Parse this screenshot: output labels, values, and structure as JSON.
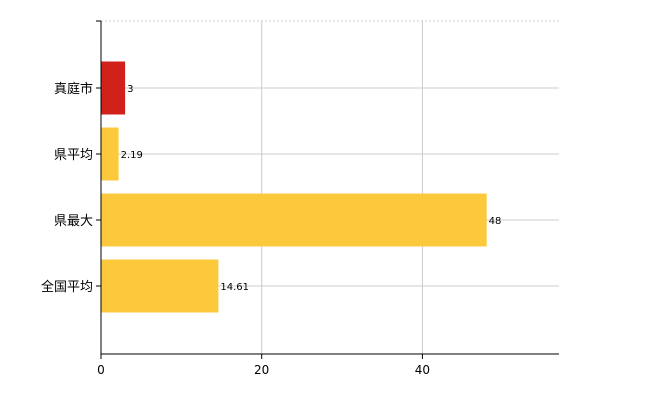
{
  "chart_data": {
    "type": "bar",
    "orientation": "horizontal",
    "categories": [
      "真庭市",
      "県平均",
      "県最大",
      "全国平均"
    ],
    "values": [
      3,
      2.19,
      48,
      14.61
    ],
    "data_labels": [
      "3",
      "2.19",
      "48",
      "14.61"
    ],
    "bar_colors": [
      "#d0221b",
      "#fcc93c",
      "#fcc93c",
      "#fcc93c"
    ],
    "xlim": [
      0,
      57
    ],
    "xticks": [
      0,
      20,
      40
    ],
    "tick_labels": [
      "0",
      "20",
      "40"
    ],
    "grid": true,
    "legend": "none",
    "title": "",
    "xlabel": "",
    "ylabel": ""
  }
}
